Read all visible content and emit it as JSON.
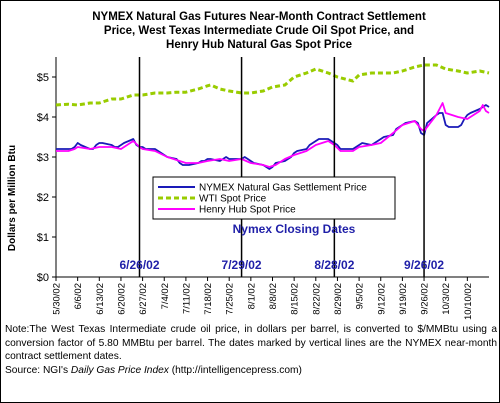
{
  "chart_data": {
    "type": "line",
    "title_lines": [
      "NYMEX Natural Gas Futures Near-Month Contract Settlement",
      "Price, West Texas Intermediate Crude Oil Spot Price, and",
      "Henry Hub Natural Gas Spot Price"
    ],
    "ylabel": "Dollars per Million Btu",
    "ylim": [
      0,
      5.5
    ],
    "yticks": [
      0,
      1,
      2,
      3,
      4,
      5
    ],
    "ytick_labels": [
      "$0",
      "$1",
      "$2",
      "$3",
      "$4",
      "$5"
    ],
    "grid": false,
    "x_start": "2002-05-30",
    "x_end": "2002-10-17",
    "xtick_labels": [
      "5/30/02",
      "6/6/02",
      "6/13/02",
      "6/20/02",
      "6/27/02",
      "7/4/02",
      "7/11/02",
      "7/18/02",
      "7/25/02",
      "8/1/02",
      "8/8/02",
      "8/15/02",
      "8/22/02",
      "8/29/02",
      "9/5/02",
      "9/12/02",
      "9/19/02",
      "9/26/02",
      "10/3/02",
      "10/10/02"
    ],
    "legend_position": "center-left",
    "series": [
      {
        "name": "NYMEX Natural Gas Settlement Price",
        "color": "#1a1ab8",
        "style": "solid",
        "points": [
          [
            "2002-05-30",
            3.2
          ],
          [
            "2002-05-31",
            3.2
          ],
          [
            "2002-06-03",
            3.2
          ],
          [
            "2002-06-04",
            3.2
          ],
          [
            "2002-06-05",
            3.25
          ],
          [
            "2002-06-06",
            3.35
          ],
          [
            "2002-06-07",
            3.3
          ],
          [
            "2002-06-10",
            3.2
          ],
          [
            "2002-06-11",
            3.2
          ],
          [
            "2002-06-12",
            3.3
          ],
          [
            "2002-06-13",
            3.35
          ],
          [
            "2002-06-14",
            3.35
          ],
          [
            "2002-06-17",
            3.3
          ],
          [
            "2002-06-18",
            3.25
          ],
          [
            "2002-06-19",
            3.25
          ],
          [
            "2002-06-20",
            3.3
          ],
          [
            "2002-06-21",
            3.35
          ],
          [
            "2002-06-24",
            3.45
          ],
          [
            "2002-06-25",
            3.3
          ],
          [
            "2002-06-26",
            3.25
          ],
          [
            "2002-06-27",
            3.25
          ],
          [
            "2002-06-28",
            3.2
          ],
          [
            "2002-07-01",
            3.2
          ],
          [
            "2002-07-02",
            3.15
          ],
          [
            "2002-07-03",
            3.1
          ],
          [
            "2002-07-05",
            3.0
          ],
          [
            "2002-07-08",
            2.95
          ],
          [
            "2002-07-09",
            2.85
          ],
          [
            "2002-07-10",
            2.8
          ],
          [
            "2002-07-11",
            2.8
          ],
          [
            "2002-07-12",
            2.8
          ],
          [
            "2002-07-15",
            2.85
          ],
          [
            "2002-07-16",
            2.9
          ],
          [
            "2002-07-17",
            2.9
          ],
          [
            "2002-07-18",
            2.95
          ],
          [
            "2002-07-19",
            2.95
          ],
          [
            "2002-07-22",
            2.9
          ],
          [
            "2002-07-23",
            2.95
          ],
          [
            "2002-07-24",
            3.0
          ],
          [
            "2002-07-25",
            2.95
          ],
          [
            "2002-07-26",
            2.95
          ],
          [
            "2002-07-29",
            2.95
          ],
          [
            "2002-07-30",
            3.0
          ],
          [
            "2002-07-31",
            2.95
          ],
          [
            "2002-08-01",
            2.9
          ],
          [
            "2002-08-02",
            2.85
          ],
          [
            "2002-08-05",
            2.8
          ],
          [
            "2002-08-06",
            2.75
          ],
          [
            "2002-08-07",
            2.7
          ],
          [
            "2002-08-08",
            2.75
          ],
          [
            "2002-08-09",
            2.85
          ],
          [
            "2002-08-12",
            2.9
          ],
          [
            "2002-08-13",
            2.95
          ],
          [
            "2002-08-14",
            3.0
          ],
          [
            "2002-08-15",
            3.1
          ],
          [
            "2002-08-16",
            3.15
          ],
          [
            "2002-08-19",
            3.2
          ],
          [
            "2002-08-20",
            3.3
          ],
          [
            "2002-08-21",
            3.35
          ],
          [
            "2002-08-22",
            3.4
          ],
          [
            "2002-08-23",
            3.45
          ],
          [
            "2002-08-26",
            3.45
          ],
          [
            "2002-08-27",
            3.4
          ],
          [
            "2002-08-28",
            3.35
          ],
          [
            "2002-08-29",
            3.3
          ],
          [
            "2002-08-30",
            3.2
          ],
          [
            "2002-09-03",
            3.2
          ],
          [
            "2002-09-04",
            3.25
          ],
          [
            "2002-09-05",
            3.3
          ],
          [
            "2002-09-06",
            3.35
          ],
          [
            "2002-09-09",
            3.3
          ],
          [
            "2002-09-10",
            3.35
          ],
          [
            "2002-09-11",
            3.4
          ],
          [
            "2002-09-12",
            3.45
          ],
          [
            "2002-09-13",
            3.5
          ],
          [
            "2002-09-16",
            3.55
          ],
          [
            "2002-09-17",
            3.7
          ],
          [
            "2002-09-18",
            3.75
          ],
          [
            "2002-09-19",
            3.8
          ],
          [
            "2002-09-20",
            3.85
          ],
          [
            "2002-09-23",
            3.9
          ],
          [
            "2002-09-24",
            3.85
          ],
          [
            "2002-09-25",
            3.6
          ],
          [
            "2002-09-26",
            3.55
          ],
          [
            "2002-09-27",
            3.85
          ],
          [
            "2002-09-30",
            4.05
          ],
          [
            "2002-10-01",
            4.1
          ],
          [
            "2002-10-02",
            4.1
          ],
          [
            "2002-10-03",
            3.8
          ],
          [
            "2002-10-04",
            3.75
          ],
          [
            "2002-10-07",
            3.75
          ],
          [
            "2002-10-08",
            3.8
          ],
          [
            "2002-10-09",
            3.95
          ],
          [
            "2002-10-10",
            4.05
          ],
          [
            "2002-10-11",
            4.1
          ],
          [
            "2002-10-14",
            4.2
          ],
          [
            "2002-10-15",
            4.25
          ],
          [
            "2002-10-16",
            4.3
          ],
          [
            "2002-10-17",
            4.25
          ]
        ]
      },
      {
        "name": "WTI Spot Price",
        "color": "#99cc00",
        "style": "dashed",
        "points": [
          [
            "2002-05-30",
            4.3
          ],
          [
            "2002-06-03",
            4.32
          ],
          [
            "2002-06-06",
            4.3
          ],
          [
            "2002-06-10",
            4.35
          ],
          [
            "2002-06-13",
            4.35
          ],
          [
            "2002-06-17",
            4.45
          ],
          [
            "2002-06-20",
            4.45
          ],
          [
            "2002-06-24",
            4.55
          ],
          [
            "2002-06-27",
            4.55
          ],
          [
            "2002-07-01",
            4.6
          ],
          [
            "2002-07-05",
            4.6
          ],
          [
            "2002-07-08",
            4.62
          ],
          [
            "2002-07-11",
            4.62
          ],
          [
            "2002-07-15",
            4.7
          ],
          [
            "2002-07-18",
            4.78
          ],
          [
            "2002-07-19",
            4.8
          ],
          [
            "2002-07-22",
            4.7
          ],
          [
            "2002-07-25",
            4.65
          ],
          [
            "2002-07-29",
            4.6
          ],
          [
            "2002-08-01",
            4.6
          ],
          [
            "2002-08-05",
            4.65
          ],
          [
            "2002-08-08",
            4.75
          ],
          [
            "2002-08-12",
            4.8
          ],
          [
            "2002-08-15",
            5.0
          ],
          [
            "2002-08-19",
            5.1
          ],
          [
            "2002-08-22",
            5.2
          ],
          [
            "2002-08-26",
            5.1
          ],
          [
            "2002-08-29",
            5.0
          ],
          [
            "2002-09-03",
            4.9
          ],
          [
            "2002-09-05",
            5.05
          ],
          [
            "2002-09-09",
            5.1
          ],
          [
            "2002-09-12",
            5.1
          ],
          [
            "2002-09-16",
            5.1
          ],
          [
            "2002-09-19",
            5.15
          ],
          [
            "2002-09-23",
            5.25
          ],
          [
            "2002-09-26",
            5.3
          ],
          [
            "2002-09-30",
            5.3
          ],
          [
            "2002-10-03",
            5.2
          ],
          [
            "2002-10-07",
            5.15
          ],
          [
            "2002-10-10",
            5.1
          ],
          [
            "2002-10-14",
            5.15
          ],
          [
            "2002-10-17",
            5.1
          ]
        ]
      },
      {
        "name": "Henry Hub Spot Price",
        "color": "#ff00ff",
        "style": "solid",
        "points": [
          [
            "2002-05-30",
            3.15
          ],
          [
            "2002-06-03",
            3.15
          ],
          [
            "2002-06-05",
            3.2
          ],
          [
            "2002-06-06",
            3.25
          ],
          [
            "2002-06-10",
            3.2
          ],
          [
            "2002-06-13",
            3.25
          ],
          [
            "2002-06-17",
            3.25
          ],
          [
            "2002-06-20",
            3.2
          ],
          [
            "2002-06-24",
            3.4
          ],
          [
            "2002-06-26",
            3.25
          ],
          [
            "2002-06-27",
            3.2
          ],
          [
            "2002-07-01",
            3.15
          ],
          [
            "2002-07-05",
            3.0
          ],
          [
            "2002-07-09",
            2.9
          ],
          [
            "2002-07-11",
            2.85
          ],
          [
            "2002-07-15",
            2.85
          ],
          [
            "2002-07-18",
            2.9
          ],
          [
            "2002-07-22",
            2.95
          ],
          [
            "2002-07-25",
            2.9
          ],
          [
            "2002-07-29",
            2.95
          ],
          [
            "2002-08-01",
            2.85
          ],
          [
            "2002-08-05",
            2.8
          ],
          [
            "2002-08-07",
            2.75
          ],
          [
            "2002-08-09",
            2.8
          ],
          [
            "2002-08-12",
            2.95
          ],
          [
            "2002-08-15",
            3.05
          ],
          [
            "2002-08-19",
            3.15
          ],
          [
            "2002-08-22",
            3.3
          ],
          [
            "2002-08-26",
            3.4
          ],
          [
            "2002-08-28",
            3.3
          ],
          [
            "2002-08-30",
            3.15
          ],
          [
            "2002-09-03",
            3.15
          ],
          [
            "2002-09-05",
            3.25
          ],
          [
            "2002-09-09",
            3.3
          ],
          [
            "2002-09-12",
            3.35
          ],
          [
            "2002-09-16",
            3.6
          ],
          [
            "2002-09-19",
            3.8
          ],
          [
            "2002-09-23",
            3.9
          ],
          [
            "2002-09-25",
            3.7
          ],
          [
            "2002-09-26",
            3.65
          ],
          [
            "2002-09-30",
            4.05
          ],
          [
            "2002-10-02",
            4.35
          ],
          [
            "2002-10-03",
            4.1
          ],
          [
            "2002-10-07",
            4.0
          ],
          [
            "2002-10-10",
            3.95
          ],
          [
            "2002-10-14",
            4.15
          ],
          [
            "2002-10-15",
            4.3
          ],
          [
            "2002-10-16",
            4.15
          ],
          [
            "2002-10-17",
            4.1
          ]
        ]
      }
    ],
    "vertical_markers": [
      {
        "date": "2002-06-26",
        "label": "6/26/02"
      },
      {
        "date": "2002-07-29",
        "label": "7/29/02"
      },
      {
        "date": "2002-08-28",
        "label": "8/28/02"
      },
      {
        "date": "2002-09-26",
        "label": "9/26/02"
      }
    ],
    "annotation": "Nymex Closing Dates"
  },
  "notes": {
    "note_text": "Note:The West Texas Intermediate crude oil price, in dollars per barrel, is converted to $/MMBtu using a conversion factor of 5.80 MMBtu per barrel. The dates marked by vertical lines are the NYMEX near-month contract settlement dates.",
    "source_prefix": "Source:  NGI's ",
    "source_italic": "Daily Gas Price Index",
    "source_suffix": " (http://intelligencepress.com)"
  },
  "colors": {
    "axis": "#000000",
    "marker_line": "#000000",
    "annotation": "#1f1fa8"
  }
}
